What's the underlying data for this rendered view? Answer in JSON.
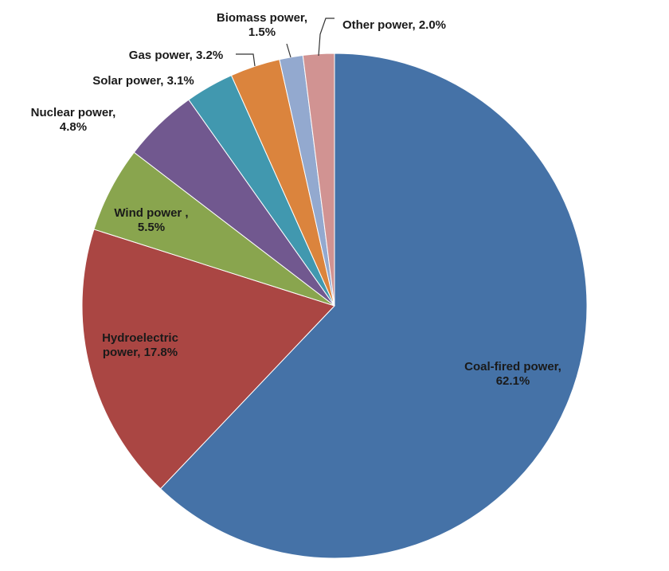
{
  "chart_data": {
    "type": "pie",
    "title": "",
    "slices": [
      {
        "name": "Coal-fired power",
        "value": 62.1,
        "color": "#4572A7",
        "label_lines": [
          "Coal-fired power,",
          "62.1%"
        ]
      },
      {
        "name": "Hydroelectric power",
        "value": 17.8,
        "color": "#AA4643",
        "label_lines": [
          "Hydroelectric",
          "power, 17.8%"
        ]
      },
      {
        "name": "Wind power",
        "value": 5.5,
        "color": "#89A54E",
        "label_lines": [
          "Wind power ,",
          "5.5%"
        ]
      },
      {
        "name": "Nuclear power",
        "value": 4.8,
        "color": "#71588F",
        "label_lines": [
          "Nuclear power,",
          "4.8%"
        ]
      },
      {
        "name": "Solar power",
        "value": 3.1,
        "color": "#4198AF",
        "label_lines": [
          "Solar power, 3.1%"
        ]
      },
      {
        "name": "Gas power",
        "value": 3.2,
        "color": "#DB843D",
        "label_lines": [
          "Gas power, 3.2%"
        ]
      },
      {
        "name": "Biomass power",
        "value": 1.5,
        "color": "#93A9CF",
        "label_lines": [
          "Biomass power,",
          "1.5%"
        ]
      },
      {
        "name": "Other power",
        "value": 2.0,
        "color": "#D19392",
        "label_lines": [
          "Other power, 2.0%"
        ]
      }
    ],
    "start": "top (12 o'clock)",
    "direction": "clockwise",
    "legend": "none (data labels on/near slices)"
  }
}
